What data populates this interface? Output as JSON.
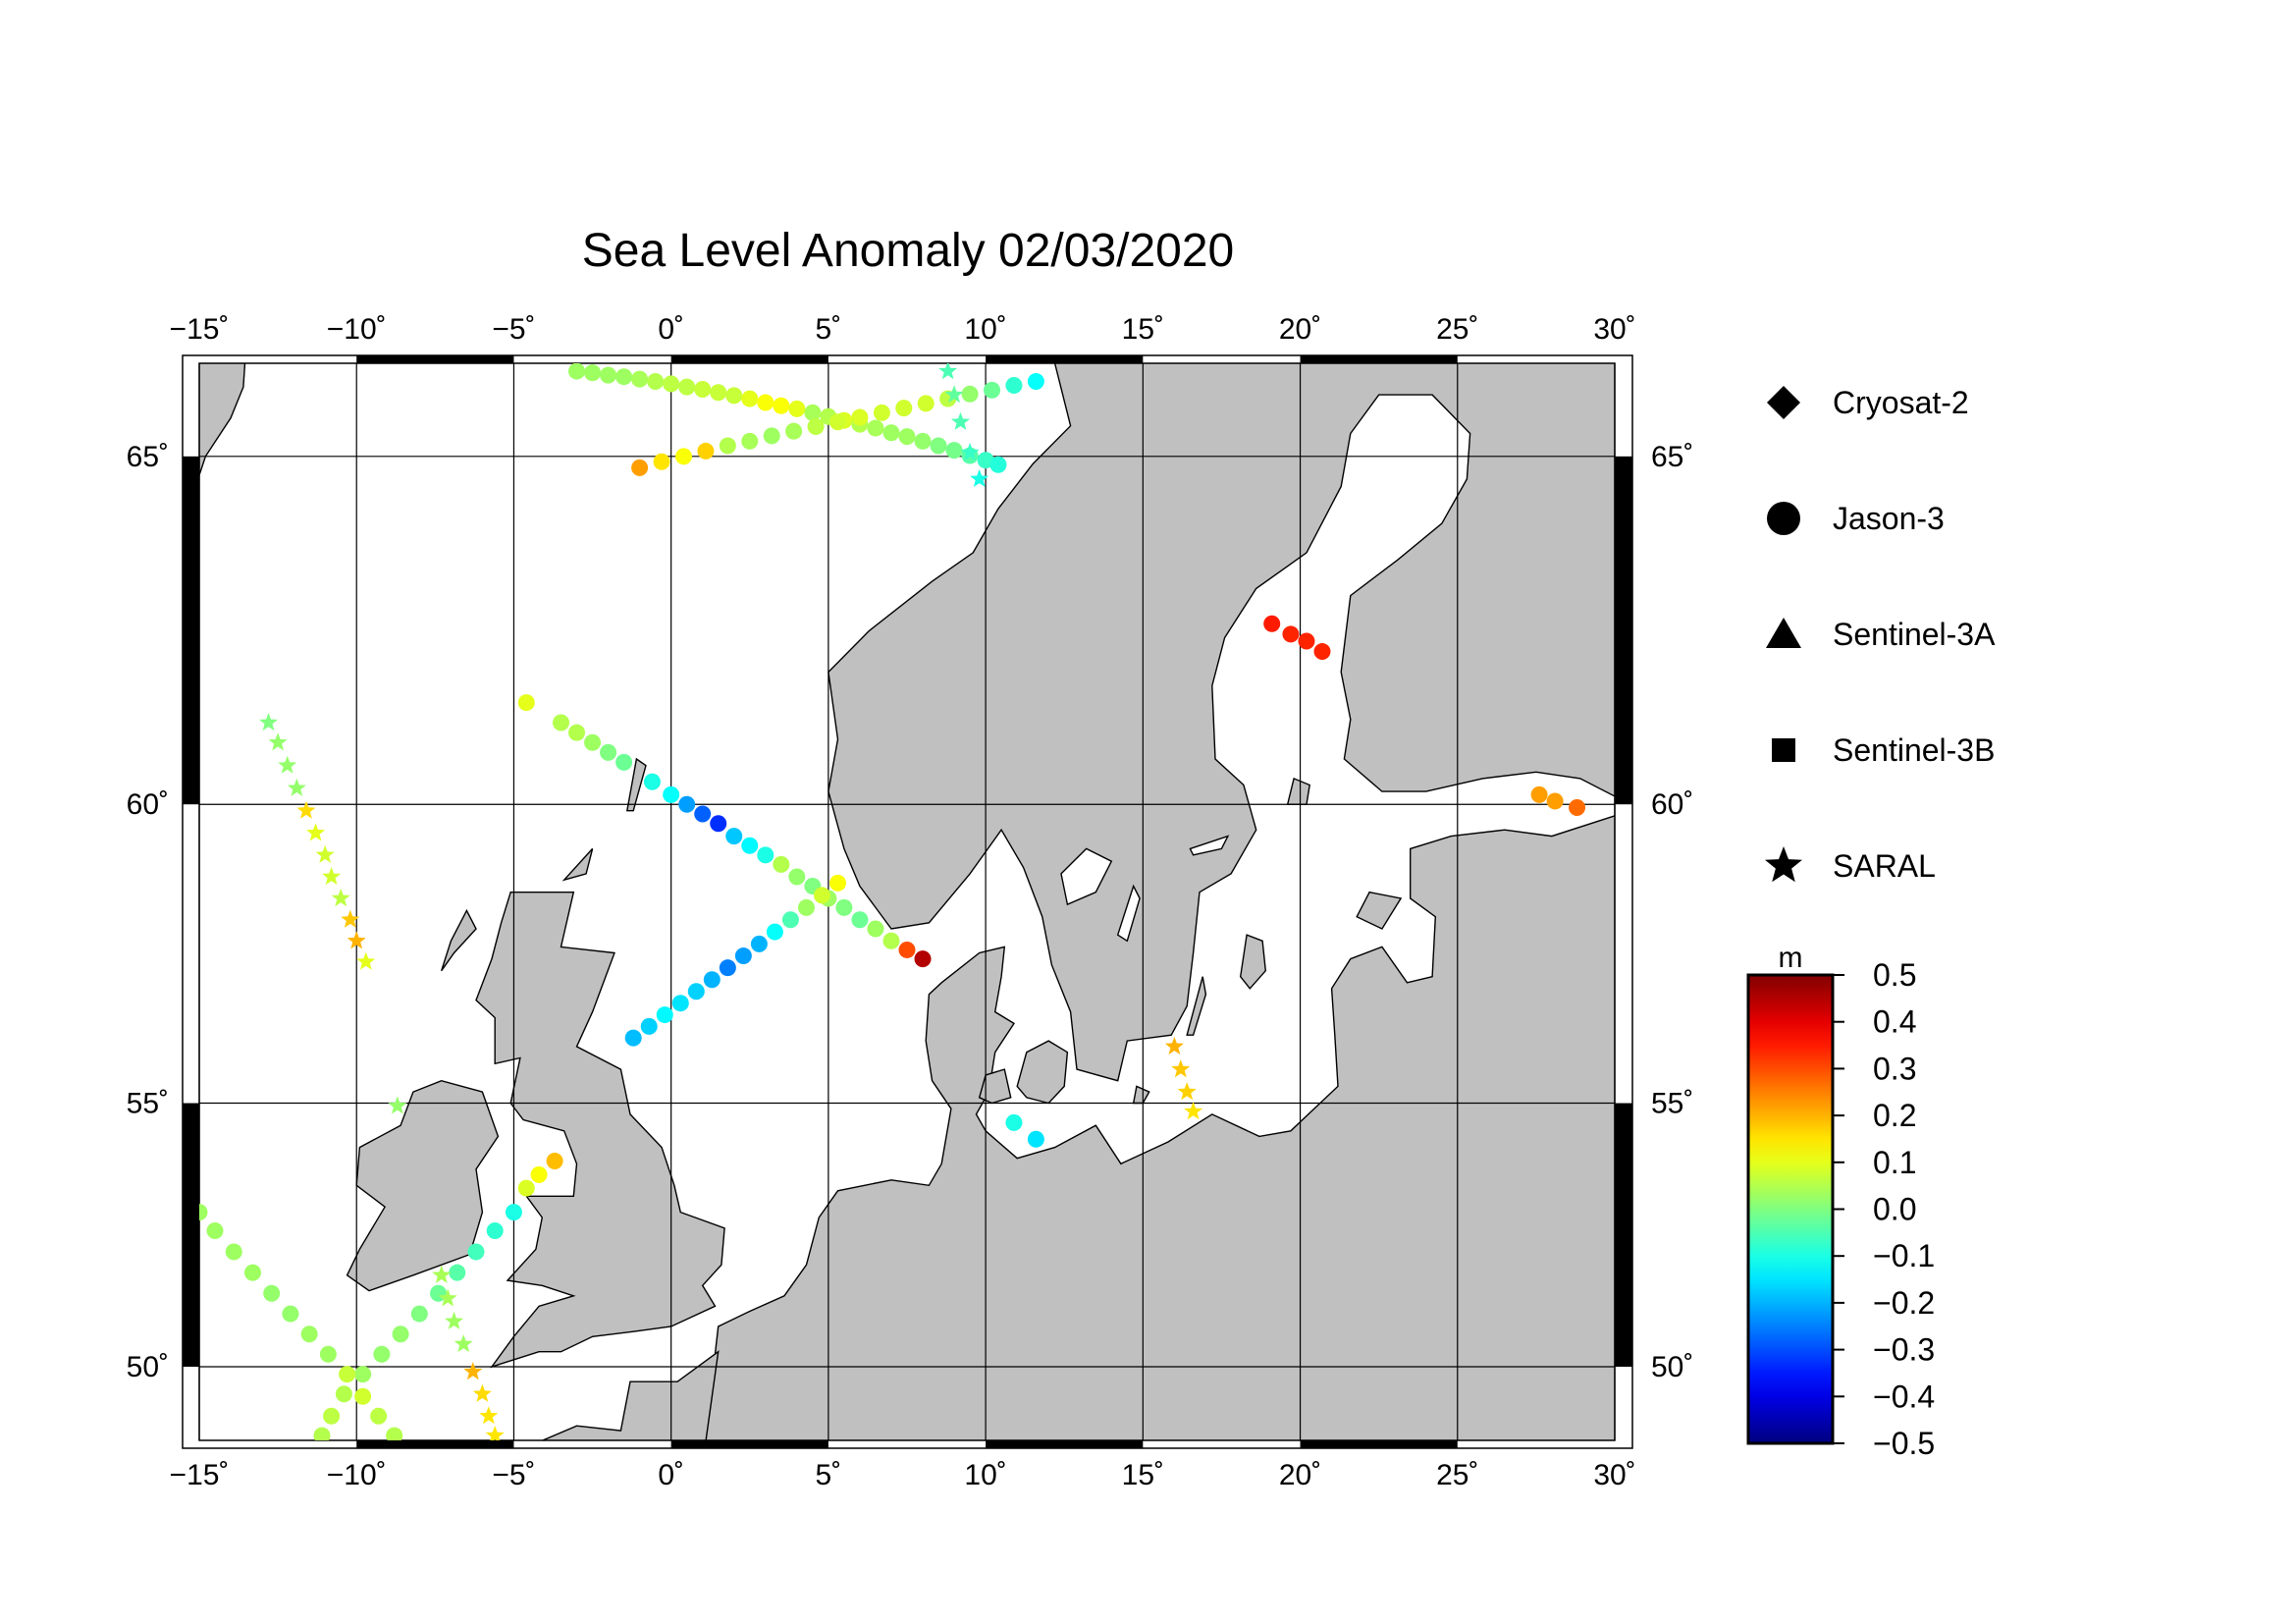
{
  "title": "Sea Level Anomaly 02/03/2020",
  "map": {
    "lon_range": [
      -15,
      30
    ],
    "lat_range": [
      48.5,
      66.2
    ],
    "lon_ticks": [
      -15,
      -10,
      -5,
      0,
      5,
      10,
      15,
      20,
      25,
      30
    ],
    "lat_ticks": [
      50,
      55,
      60,
      65
    ],
    "lon_tick_labels": [
      "−15˚",
      "−10˚",
      "−5˚",
      "0˚",
      "5˚",
      "10˚",
      "15˚",
      "20˚",
      "25˚",
      "30˚"
    ],
    "lat_tick_labels": [
      "50˚",
      "55˚",
      "60˚",
      "65˚"
    ],
    "land_color": "#c0c0c0",
    "sea_color": "#ffffff",
    "grid": true
  },
  "legend": {
    "items": [
      {
        "label": "Cryosat-2",
        "symbol": "diamond"
      },
      {
        "label": "Jason-3",
        "symbol": "circle"
      },
      {
        "label": "Sentinel-3A",
        "symbol": "triangle"
      },
      {
        "label": "Sentinel-3B",
        "symbol": "square"
      },
      {
        "label": "SARAL",
        "symbol": "star"
      }
    ]
  },
  "colorbar": {
    "unit": "m",
    "min": -0.5,
    "max": 0.5,
    "ticks": [
      "0.5",
      "0.4",
      "0.3",
      "0.2",
      "0.1",
      "0.0",
      "−0.1",
      "−0.2",
      "−0.3",
      "−0.4",
      "−0.5"
    ],
    "colormap": "jet"
  },
  "chart_data": {
    "type": "scatter",
    "title": "Sea Level Anomaly 02/03/2020",
    "x_unit": "degrees longitude",
    "y_unit": "degrees latitude",
    "value_unit": "m",
    "series": [
      {
        "name": "Jason-3",
        "symbol": "circle",
        "points": [
          [
            -3,
            66.1,
            0.03
          ],
          [
            -2.5,
            66.08,
            0.03
          ],
          [
            -2,
            66.05,
            0.03
          ],
          [
            -1.5,
            66.03,
            0.03
          ],
          [
            -1,
            66.0,
            0.04
          ],
          [
            -0.5,
            65.97,
            0.05
          ],
          [
            0,
            65.94,
            0.06
          ],
          [
            0.5,
            65.9,
            0.06
          ],
          [
            1,
            65.87,
            0.07
          ],
          [
            1.5,
            65.83,
            0.07
          ],
          [
            2,
            65.79,
            0.07
          ],
          [
            2.5,
            65.75,
            0.1
          ],
          [
            3,
            65.7,
            0.12
          ],
          [
            3.5,
            65.66,
            0.12
          ],
          [
            4,
            65.62,
            0.1
          ],
          [
            4.5,
            65.57,
            0.04
          ],
          [
            5,
            65.52,
            0.05
          ],
          [
            5.5,
            65.47,
            0.09
          ],
          [
            6,
            65.42,
            0.05
          ],
          [
            6.5,
            65.37,
            0.04
          ],
          [
            7,
            65.31,
            0.03
          ],
          [
            7.5,
            65.26,
            0.03
          ],
          [
            8,
            65.2,
            0.02
          ],
          [
            8.5,
            65.14,
            0.0
          ],
          [
            9,
            65.08,
            -0.01
          ],
          [
            9.5,
            65.01,
            -0.04
          ],
          [
            10,
            64.95,
            -0.07
          ],
          [
            10.4,
            64.89,
            -0.09
          ],
          [
            -1,
            64.85,
            0.22
          ],
          [
            -0.3,
            64.93,
            0.15
          ],
          [
            0.4,
            65.0,
            0.12
          ],
          [
            1.1,
            65.07,
            0.17
          ],
          [
            1.8,
            65.14,
            0.05
          ],
          [
            2.5,
            65.2,
            0.04
          ],
          [
            3.2,
            65.27,
            0.03
          ],
          [
            3.9,
            65.33,
            0.04
          ],
          [
            4.6,
            65.39,
            0.06
          ],
          [
            5.3,
            65.45,
            0.08
          ],
          [
            6,
            65.51,
            0.09
          ],
          [
            6.7,
            65.57,
            0.08
          ],
          [
            7.4,
            65.63,
            0.08
          ],
          [
            8.1,
            65.69,
            0.08
          ],
          [
            8.8,
            65.75,
            0.06
          ],
          [
            9.5,
            65.81,
            0.02
          ],
          [
            10.2,
            65.86,
            -0.02
          ],
          [
            10.9,
            65.92,
            -0.08
          ],
          [
            11.6,
            65.97,
            -0.12
          ],
          [
            -4.6,
            61.55,
            0.1
          ],
          [
            -3.5,
            61.25,
            0.05
          ],
          [
            -3.0,
            61.1,
            0.05
          ],
          [
            -2.5,
            60.95,
            0.03
          ],
          [
            -2.0,
            60.8,
            0.0
          ],
          [
            -1.5,
            60.65,
            -0.02
          ],
          [
            -0.6,
            60.35,
            -0.1
          ],
          [
            0.0,
            60.15,
            -0.12
          ],
          [
            0.5,
            60.0,
            -0.22
          ],
          [
            1.0,
            59.85,
            -0.28
          ],
          [
            1.5,
            59.7,
            -0.33
          ],
          [
            2.0,
            59.5,
            -0.18
          ],
          [
            2.5,
            59.35,
            -0.13
          ],
          [
            3.0,
            59.2,
            -0.1
          ],
          [
            3.5,
            59.05,
            0.05
          ],
          [
            4.0,
            58.85,
            0.02
          ],
          [
            4.5,
            58.7,
            0.0
          ],
          [
            5.0,
            58.5,
            0.03
          ],
          [
            5.5,
            58.35,
            0.0
          ],
          [
            6.0,
            58.15,
            -0.02
          ],
          [
            6.5,
            58.0,
            0.03
          ],
          [
            7.0,
            57.8,
            0.05
          ],
          [
            7.5,
            57.65,
            0.3
          ],
          [
            8.0,
            57.5,
            0.45
          ],
          [
            5.3,
            58.75,
            0.12
          ],
          [
            4.8,
            58.55,
            0.08
          ],
          [
            4.3,
            58.35,
            0.03
          ],
          [
            3.8,
            58.15,
            -0.05
          ],
          [
            3.3,
            57.95,
            -0.12
          ],
          [
            2.8,
            57.75,
            -0.2
          ],
          [
            2.3,
            57.55,
            -0.22
          ],
          [
            1.8,
            57.35,
            -0.25
          ],
          [
            1.3,
            57.15,
            -0.2
          ],
          [
            0.8,
            56.95,
            -0.17
          ],
          [
            0.3,
            56.75,
            -0.15
          ],
          [
            -0.2,
            56.55,
            -0.13
          ],
          [
            -0.7,
            56.35,
            -0.17
          ],
          [
            -1.2,
            56.15,
            -0.19
          ],
          [
            10.9,
            54.65,
            -0.1
          ],
          [
            11.6,
            54.35,
            -0.15
          ],
          [
            -3.7,
            53.95,
            0.19
          ],
          [
            -4.2,
            53.7,
            0.12
          ],
          [
            -4.6,
            53.45,
            0.09
          ],
          [
            -5.0,
            53.0,
            -0.1
          ],
          [
            -5.6,
            52.65,
            -0.08
          ],
          [
            -6.2,
            52.25,
            -0.06
          ],
          [
            -6.8,
            51.85,
            -0.04
          ],
          [
            -7.4,
            51.45,
            -0.02
          ],
          [
            -8.0,
            51.05,
            0.0
          ],
          [
            -8.6,
            50.65,
            0.02
          ],
          [
            -9.2,
            50.25,
            0.02
          ],
          [
            -9.8,
            49.85,
            0.03
          ],
          [
            -10.4,
            49.45,
            0.05
          ],
          [
            -10.8,
            49.0,
            0.06
          ],
          [
            -11.1,
            48.6,
            0.05
          ],
          [
            -15.0,
            53.0,
            0.03
          ],
          [
            -14.5,
            52.65,
            0.03
          ],
          [
            -13.9,
            52.25,
            0.03
          ],
          [
            -13.3,
            51.85,
            0.03
          ],
          [
            -12.7,
            51.45,
            0.02
          ],
          [
            -12.1,
            51.05,
            0.02
          ],
          [
            -11.5,
            50.65,
            0.03
          ],
          [
            -10.9,
            50.25,
            0.03
          ],
          [
            -10.3,
            49.85,
            0.07
          ],
          [
            -9.8,
            49.4,
            0.08
          ],
          [
            -9.3,
            49.0,
            0.06
          ],
          [
            -8.8,
            48.6,
            0.05
          ],
          [
            19.1,
            62.7,
            0.35
          ],
          [
            19.7,
            62.55,
            0.34
          ],
          [
            20.2,
            62.45,
            0.34
          ],
          [
            20.7,
            62.3,
            0.34
          ],
          [
            27.6,
            60.15,
            0.22
          ],
          [
            28.1,
            60.05,
            0.22
          ],
          [
            28.8,
            59.95,
            0.27
          ]
        ]
      },
      {
        "name": "SARAL",
        "symbol": "star",
        "points": [
          [
            -12.8,
            61.25,
            0.0
          ],
          [
            -12.5,
            60.95,
            0.02
          ],
          [
            -12.2,
            60.6,
            0.02
          ],
          [
            -11.9,
            60.25,
            0.02
          ],
          [
            -11.6,
            59.9,
            0.16
          ],
          [
            -11.3,
            59.55,
            0.1
          ],
          [
            -11.0,
            59.2,
            0.08
          ],
          [
            -10.8,
            58.85,
            0.08
          ],
          [
            -10.5,
            58.5,
            0.06
          ],
          [
            -10.2,
            58.15,
            0.18
          ],
          [
            -10.0,
            57.8,
            0.2
          ],
          [
            -9.7,
            57.45,
            0.1
          ],
          [
            8.8,
            66.1,
            -0.05
          ],
          [
            9.0,
            65.8,
            -0.03
          ],
          [
            9.2,
            65.45,
            -0.05
          ],
          [
            9.5,
            65.05,
            -0.07
          ],
          [
            9.8,
            64.7,
            -0.1
          ],
          [
            -7.3,
            51.8,
            0.04
          ],
          [
            -7.1,
            51.35,
            0.04
          ],
          [
            -6.9,
            50.9,
            0.03
          ],
          [
            -6.6,
            50.45,
            0.03
          ],
          [
            -6.3,
            49.9,
            0.2
          ],
          [
            -6.0,
            49.45,
            0.16
          ],
          [
            -5.8,
            49.0,
            0.15
          ],
          [
            -5.6,
            48.6,
            0.15
          ],
          [
            -8.7,
            54.95,
            0.02
          ],
          [
            16.0,
            56.0,
            0.2
          ],
          [
            16.2,
            55.6,
            0.18
          ],
          [
            16.4,
            55.2,
            0.17
          ],
          [
            16.6,
            54.85,
            0.15
          ]
        ]
      }
    ]
  }
}
